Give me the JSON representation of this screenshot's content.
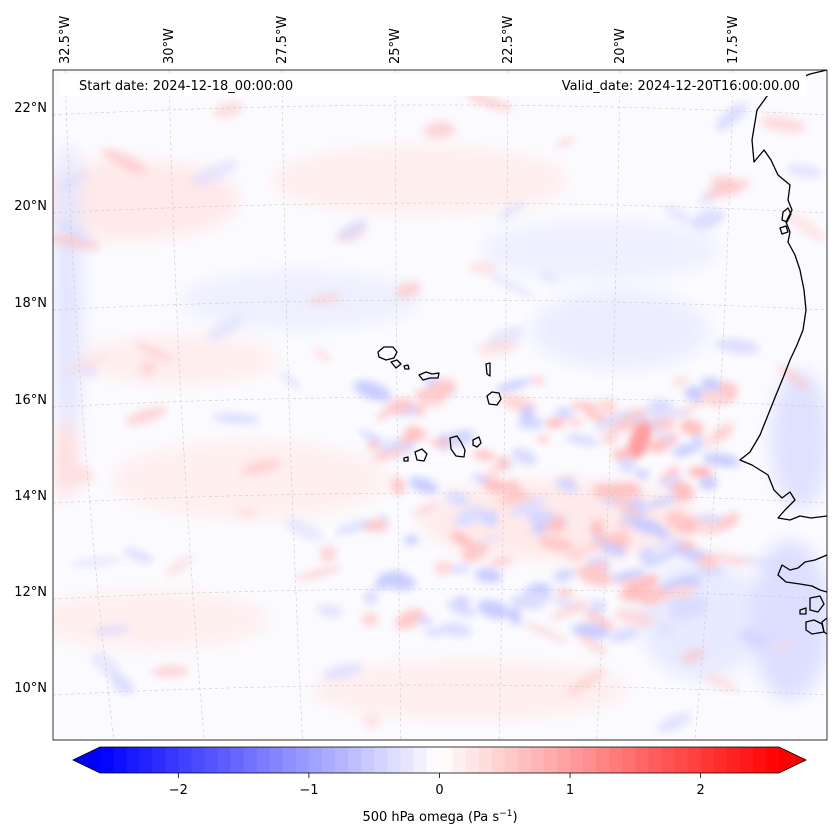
{
  "map": {
    "start_date": "Start date: 2024-12-18_00:00:00",
    "valid_date": "Valid_date: 2024-12-20T16:00:00.00",
    "lon_labels": [
      "32.5°W",
      "30°W",
      "27.5°W",
      "25°W",
      "22.5°W",
      "20°W",
      "17.5°W"
    ],
    "lat_labels": [
      "22°N",
      "20°N",
      "18°N",
      "16°N",
      "14°N",
      "12°N",
      "10°N"
    ],
    "coastline_color": "#000000",
    "gridline_color": "#c9c9c9"
  },
  "colorbar": {
    "label": "500 hPa omega (Pa s",
    "label_exp": "−1",
    "label_close": ")",
    "ticks": [
      {
        "value": -2,
        "label": "−2"
      },
      {
        "value": -1,
        "label": "−1"
      },
      {
        "value": 0,
        "label": "0"
      },
      {
        "value": 1,
        "label": "1"
      },
      {
        "value": 2,
        "label": "2"
      }
    ],
    "range": [
      -2.6,
      2.6
    ],
    "extend": "both",
    "colormap": "bwr",
    "low_color": "#0000ff",
    "mid_color": "#ffffff",
    "high_color": "#ff0000"
  }
}
